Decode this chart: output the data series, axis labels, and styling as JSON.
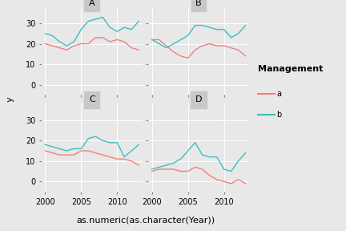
{
  "panels": [
    "A",
    "B",
    "C",
    "D"
  ],
  "years": [
    2000,
    2001,
    2002,
    2003,
    2004,
    2005,
    2006,
    2007,
    2008,
    2009,
    2010,
    2011,
    2012,
    2013
  ],
  "data": {
    "A": {
      "a": [
        20,
        19,
        18,
        17,
        19,
        20,
        20,
        23,
        23,
        21,
        22,
        21,
        18,
        17
      ],
      "b": [
        25,
        24,
        21,
        19,
        21,
        27,
        31,
        32,
        33,
        28,
        26,
        28,
        27,
        31
      ]
    },
    "B": {
      "a": [
        22,
        22,
        19,
        16,
        14,
        13,
        17,
        19,
        20,
        19,
        19,
        18,
        17,
        14
      ],
      "b": [
        22,
        20,
        18,
        20,
        22,
        24,
        29,
        29,
        28,
        27,
        27,
        23,
        25,
        29
      ]
    },
    "C": {
      "a": [
        15,
        14,
        13,
        13,
        13,
        15,
        15,
        14,
        13,
        12,
        11,
        11,
        10,
        8
      ],
      "b": [
        18,
        17,
        16,
        15,
        16,
        16,
        21,
        22,
        20,
        19,
        19,
        12,
        15,
        18
      ]
    },
    "D": {
      "a": [
        5,
        6,
        6,
        6,
        5,
        5,
        7,
        6,
        3,
        1,
        0,
        -1,
        1,
        -1
      ],
      "b": [
        6,
        7,
        8,
        9,
        11,
        15,
        19,
        13,
        12,
        12,
        6,
        5,
        10,
        14
      ]
    }
  },
  "color_a": "#f08080",
  "color_b": "#3dbfbf",
  "bg_panel": "#e8e8e8",
  "bg_figure": "#e8e8e8",
  "bg_outer": "#e8e8e8",
  "strip_bg": "#c8c8c8",
  "grid_color": "#ffffff",
  "xlabel": "as.numeric(as.character(Year))",
  "ylabel": "y",
  "legend_title": "Management",
  "ylim": [
    -5,
    38
  ],
  "yticks": [
    0,
    10,
    20,
    30
  ],
  "xticks": [
    2000,
    2005,
    2010
  ],
  "title_fontsize": 8,
  "axis_fontsize": 7,
  "label_fontsize": 8
}
